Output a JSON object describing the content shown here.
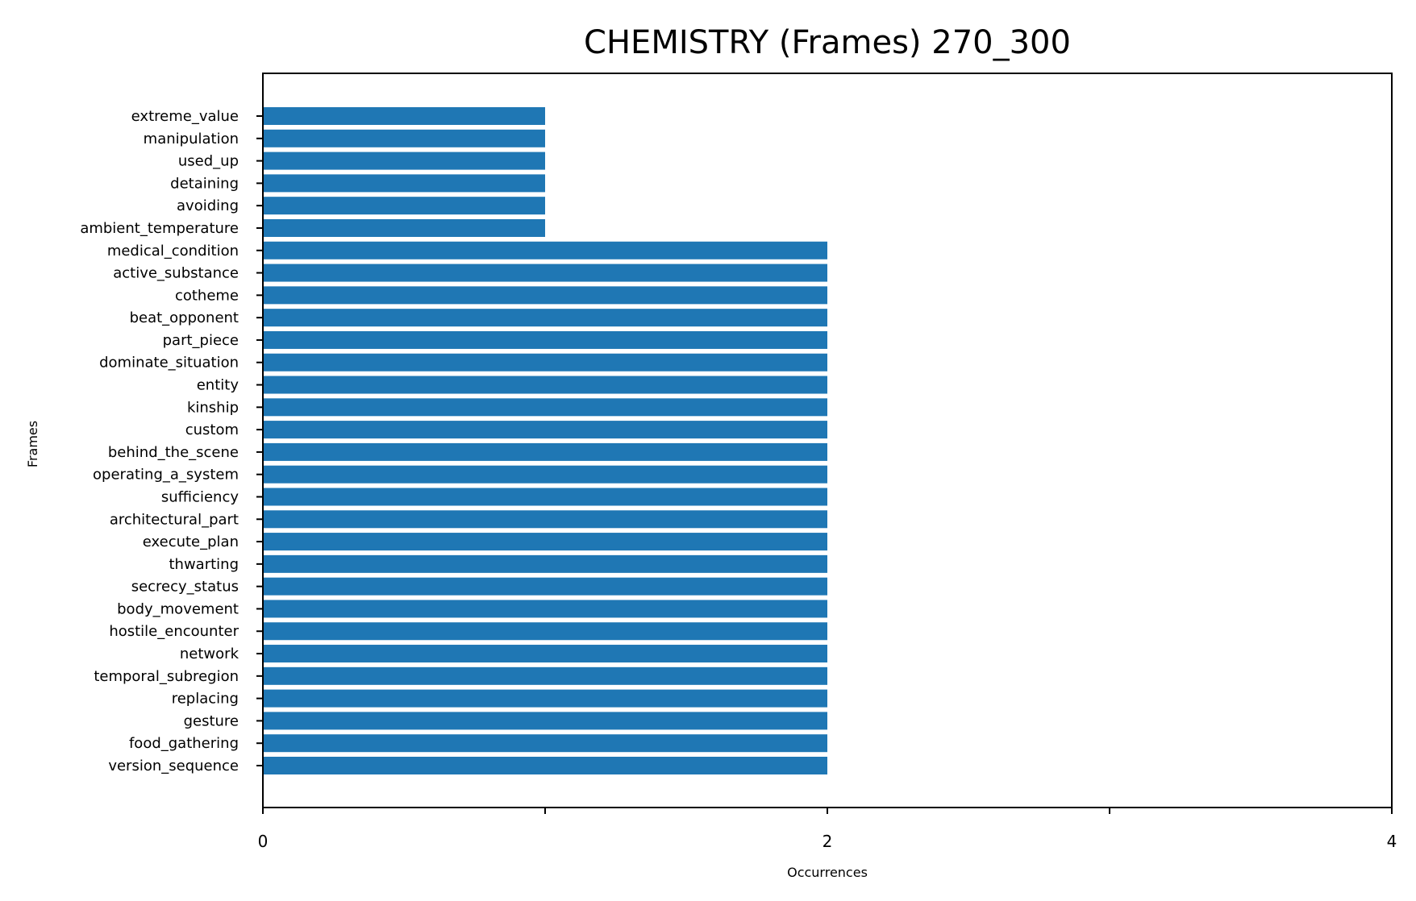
{
  "chart_data": {
    "type": "bar",
    "orientation": "horizontal",
    "title": "CHEMISTRY (Frames) 270_300",
    "xlabel": "Occurrences",
    "ylabel": "Frames",
    "xlim": [
      0,
      4
    ],
    "x_ticks": [
      0,
      1,
      2,
      3,
      4
    ],
    "x_tick_labels": [
      "0",
      "",
      "2",
      "",
      "4"
    ],
    "grid": false,
    "bar_color": "#1f77b4",
    "categories": [
      "extreme_value",
      "manipulation",
      "used_up",
      "detaining",
      "avoiding",
      "ambient_temperature",
      "medical_condition",
      "active_substance",
      "cotheme",
      "beat_opponent",
      "part_piece",
      "dominate_situation",
      "entity",
      "kinship",
      "custom",
      "behind_the_scene",
      "operating_a_system",
      "sufficiency",
      "architectural_part",
      "execute_plan",
      "thwarting",
      "secrecy_status",
      "body_movement",
      "hostile_encounter",
      "network",
      "temporal_subregion",
      "replacing",
      "gesture",
      "food_gathering",
      "version_sequence"
    ],
    "values": [
      1,
      1,
      1,
      1,
      1,
      1,
      2,
      2,
      2,
      2,
      2,
      2,
      2,
      2,
      2,
      2,
      2,
      2,
      2,
      2,
      2,
      2,
      2,
      2,
      2,
      2,
      2,
      2,
      2,
      2
    ]
  }
}
